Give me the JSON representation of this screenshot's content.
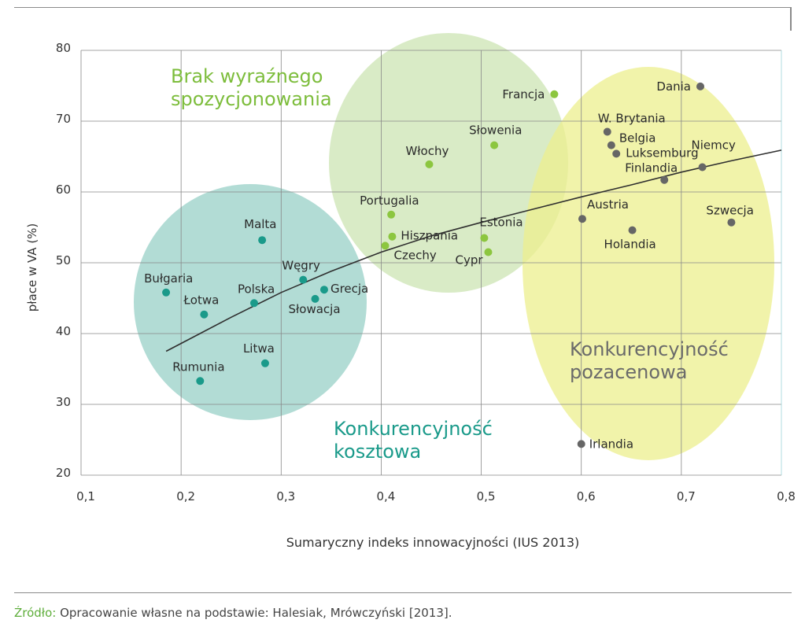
{
  "chart_data": {
    "type": "scatter",
    "xlabel": "Sumaryczny indeks innowacyjności (IUS 2013)",
    "ylabel": "płace w VA (%)",
    "xlim": [
      0.1,
      0.8
    ],
    "ylim": [
      20,
      80
    ],
    "x_ticks": [
      "0,1",
      "0,2",
      "0,3",
      "0,4",
      "0,5",
      "0,6",
      "0,7",
      "0,8"
    ],
    "y_ticks": [
      "20",
      "30",
      "40",
      "50",
      "60",
      "70",
      "80"
    ],
    "grid": true,
    "series": [
      {
        "name": "Konkurencyjność kosztowa",
        "color": "#1a9a8a",
        "points": [
          {
            "label": "Bułgaria",
            "x": 0.185,
            "y": 45.8
          },
          {
            "label": "Łotwa",
            "x": 0.223,
            "y": 42.7
          },
          {
            "label": "Rumunia",
            "x": 0.219,
            "y": 33.3
          },
          {
            "label": "Polska",
            "x": 0.273,
            "y": 44.3
          },
          {
            "label": "Malta",
            "x": 0.281,
            "y": 53.2
          },
          {
            "label": "Litwa",
            "x": 0.284,
            "y": 35.8
          },
          {
            "label": "Węgry",
            "x": 0.322,
            "y": 47.6
          },
          {
            "label": "Słowacja",
            "x": 0.334,
            "y": 44.9
          },
          {
            "label": "Grecja",
            "x": 0.343,
            "y": 46.2
          }
        ]
      },
      {
        "name": "Brak wyraźnego spozycjonowania",
        "color": "#8cc63f",
        "points": [
          {
            "label": "Portugalia",
            "x": 0.41,
            "y": 56.8
          },
          {
            "label": "Hiszpania",
            "x": 0.411,
            "y": 53.7
          },
          {
            "label": "Czechy",
            "x": 0.404,
            "y": 52.4
          },
          {
            "label": "Włochy",
            "x": 0.448,
            "y": 63.9
          },
          {
            "label": "Estonia",
            "x": 0.503,
            "y": 53.5
          },
          {
            "label": "Cypr",
            "x": 0.507,
            "y": 51.5
          },
          {
            "label": "Słowenia",
            "x": 0.513,
            "y": 66.6
          },
          {
            "label": "Francja",
            "x": 0.573,
            "y": 73.8
          }
        ]
      },
      {
        "name": "Konkurencyjność pozacenowa",
        "color": "#666666",
        "points": [
          {
            "label": "Austria",
            "x": 0.601,
            "y": 56.2
          },
          {
            "label": "Irlandia",
            "x": 0.6,
            "y": 24.4
          },
          {
            "label": "W. Brytania",
            "x": 0.626,
            "y": 68.5
          },
          {
            "label": "Belgia",
            "x": 0.63,
            "y": 66.6
          },
          {
            "label": "Luksemburg",
            "x": 0.635,
            "y": 65.4
          },
          {
            "label": "Holandia",
            "x": 0.651,
            "y": 54.6
          },
          {
            "label": "Finlandia",
            "x": 0.683,
            "y": 61.7
          },
          {
            "label": "Dania",
            "x": 0.719,
            "y": 74.9
          },
          {
            "label": "Niemcy",
            "x": 0.721,
            "y": 63.5
          },
          {
            "label": "Szwecja",
            "x": 0.75,
            "y": 55.7
          }
        ]
      }
    ],
    "trendline": {
      "type": "logarithmic",
      "points": [
        [
          0.185,
          37.5
        ],
        [
          0.25,
          42.3
        ],
        [
          0.3,
          45.8
        ],
        [
          0.35,
          48.8
        ],
        [
          0.4,
          51.5
        ],
        [
          0.45,
          53.8
        ],
        [
          0.5,
          55.7
        ],
        [
          0.55,
          57.5
        ],
        [
          0.6,
          59.3
        ],
        [
          0.65,
          61.0
        ],
        [
          0.7,
          62.8
        ],
        [
          0.75,
          64.4
        ],
        [
          0.8,
          65.9
        ]
      ]
    },
    "region_labels": [
      {
        "text_lines": [
          "Brak wyraźnego",
          "spozycjonowania"
        ],
        "color": "#7dbd3c"
      },
      {
        "text_lines": [
          "Konkurencyjność",
          "kosztowa"
        ],
        "color": "#1a9a8a"
      },
      {
        "text_lines": [
          "Konkurencyjność",
          "pozacenowa"
        ],
        "color": "#6a6a6a"
      }
    ]
  },
  "source": {
    "label": "Źródło:",
    "text": " Opracowanie własne na podstawie: Halesiak, Mrówczyński [2013]."
  }
}
